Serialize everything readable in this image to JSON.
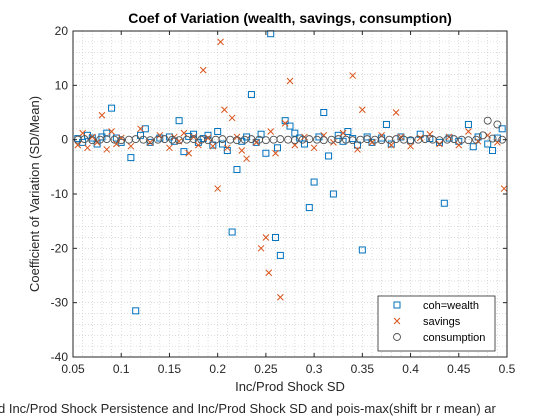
{
  "chart_data": {
    "type": "scatter",
    "title": "Coef of Variation (wealth, savings, consumption)",
    "xlabel": "Inc/Prod Shock SD",
    "ylabel": "Coefficient of Variation (SD/Mean)",
    "caption": "d Inc/Prod Shock Persistence and Inc/Prod Shock SD and pois-max(shift br r mean) ar",
    "xlim": [
      0.05,
      0.5
    ],
    "ylim": [
      -40,
      20
    ],
    "xticks": [
      "0.05",
      "0.1",
      "0.15",
      "0.2",
      "0.25",
      "0.3",
      "0.35",
      "0.4",
      "0.45",
      "0.5"
    ],
    "yticks": [
      "20",
      "10",
      "0",
      "-10",
      "-20",
      "-30",
      "-40"
    ],
    "grid": "dotted-minor",
    "legend_position": "bottom-right",
    "series": [
      {
        "name": "coh=wealth",
        "marker": "square",
        "color": "#0072BD",
        "points": [
          [
            0.055,
            0.2
          ],
          [
            0.06,
            -0.5
          ],
          [
            0.065,
            0.8
          ],
          [
            0.07,
            0.3
          ],
          [
            0.075,
            -0.8
          ],
          [
            0.08,
            0.5
          ],
          [
            0.085,
            1.2
          ],
          [
            0.09,
            5.8
          ],
          [
            0.095,
            0.3
          ],
          [
            0.1,
            -0.5
          ],
          [
            0.11,
            -3.3
          ],
          [
            0.115,
            -31.5
          ],
          [
            0.12,
            0.8
          ],
          [
            0.125,
            2.0
          ],
          [
            0.13,
            -0.5
          ],
          [
            0.14,
            0.3
          ],
          [
            0.15,
            0.5
          ],
          [
            0.155,
            -0.3
          ],
          [
            0.16,
            3.5
          ],
          [
            0.165,
            -2.2
          ],
          [
            0.17,
            0.6
          ],
          [
            0.175,
            1.0
          ],
          [
            0.18,
            -0.5
          ],
          [
            0.185,
            0.2
          ],
          [
            0.19,
            0.8
          ],
          [
            0.195,
            -1.0
          ],
          [
            0.2,
            1.5
          ],
          [
            0.205,
            -0.8
          ],
          [
            0.21,
            -2.0
          ],
          [
            0.215,
            -17.0
          ],
          [
            0.22,
            -5.5
          ],
          [
            0.225,
            -0.3
          ],
          [
            0.23,
            0.5
          ],
          [
            0.235,
            8.3
          ],
          [
            0.24,
            -0.5
          ],
          [
            0.245,
            1.0
          ],
          [
            0.25,
            -2.5
          ],
          [
            0.255,
            19.5
          ],
          [
            0.26,
            -18.0
          ],
          [
            0.262,
            -1.5
          ],
          [
            0.265,
            -21.3
          ],
          [
            0.27,
            3.5
          ],
          [
            0.275,
            2.5
          ],
          [
            0.28,
            1.2
          ],
          [
            0.285,
            0.3
          ],
          [
            0.29,
            -0.8
          ],
          [
            0.295,
            -12.5
          ],
          [
            0.3,
            -7.8
          ],
          [
            0.305,
            0.5
          ],
          [
            0.31,
            5.0
          ],
          [
            0.315,
            -3.0
          ],
          [
            0.32,
            -10.0
          ],
          [
            0.325,
            0.8
          ],
          [
            0.33,
            -0.3
          ],
          [
            0.335,
            1.5
          ],
          [
            0.34,
            0.2
          ],
          [
            0.345,
            -1.0
          ],
          [
            0.35,
            -20.3
          ],
          [
            0.355,
            0.5
          ],
          [
            0.36,
            -0.5
          ],
          [
            0.37,
            0.3
          ],
          [
            0.375,
            2.8
          ],
          [
            0.38,
            -0.8
          ],
          [
            0.39,
            0.5
          ],
          [
            0.4,
            -0.2
          ],
          [
            0.41,
            1.0
          ],
          [
            0.42,
            0.2
          ],
          [
            0.43,
            -0.5
          ],
          [
            0.435,
            -11.7
          ],
          [
            0.44,
            0.3
          ],
          [
            0.45,
            -0.3
          ],
          [
            0.46,
            2.8
          ],
          [
            0.465,
            -1.3
          ],
          [
            0.47,
            0.5
          ],
          [
            0.48,
            -0.8
          ],
          [
            0.485,
            -2.0
          ],
          [
            0.49,
            0.3
          ],
          [
            0.495,
            2.0
          ]
        ]
      },
      {
        "name": "savings",
        "marker": "x",
        "color": "#D95319",
        "points": [
          [
            0.055,
            -1.0
          ],
          [
            0.06,
            1.2
          ],
          [
            0.065,
            -1.5
          ],
          [
            0.07,
            0.5
          ],
          [
            0.075,
            -0.5
          ],
          [
            0.08,
            4.5
          ],
          [
            0.085,
            -1.8
          ],
          [
            0.09,
            1.5
          ],
          [
            0.095,
            -0.8
          ],
          [
            0.1,
            0.3
          ],
          [
            0.11,
            -1.2
          ],
          [
            0.12,
            2.0
          ],
          [
            0.13,
            -0.5
          ],
          [
            0.14,
            0.8
          ],
          [
            0.15,
            -1.5
          ],
          [
            0.155,
            0.5
          ],
          [
            0.16,
            -0.3
          ],
          [
            0.165,
            1.2
          ],
          [
            0.17,
            -2.5
          ],
          [
            0.175,
            0.5
          ],
          [
            0.18,
            -1.0
          ],
          [
            0.185,
            12.8
          ],
          [
            0.19,
            0.3
          ],
          [
            0.195,
            -1.2
          ],
          [
            0.2,
            -9.0
          ],
          [
            0.203,
            18.0
          ],
          [
            0.207,
            5.5
          ],
          [
            0.21,
            -1.5
          ],
          [
            0.215,
            4.0
          ],
          [
            0.22,
            0.5
          ],
          [
            0.225,
            -2.0
          ],
          [
            0.23,
            -3.5
          ],
          [
            0.24,
            -0.5
          ],
          [
            0.245,
            -20.0
          ],
          [
            0.25,
            -18.0
          ],
          [
            0.253,
            -24.5
          ],
          [
            0.255,
            1.5
          ],
          [
            0.26,
            -2.5
          ],
          [
            0.265,
            -29.0
          ],
          [
            0.27,
            3.0
          ],
          [
            0.275,
            10.8
          ],
          [
            0.28,
            -1.0
          ],
          [
            0.29,
            0.5
          ],
          [
            0.3,
            -1.5
          ],
          [
            0.31,
            0.8
          ],
          [
            0.32,
            -0.5
          ],
          [
            0.33,
            1.2
          ],
          [
            0.34,
            11.8
          ],
          [
            0.345,
            -1.8
          ],
          [
            0.35,
            5.5
          ],
          [
            0.36,
            -0.5
          ],
          [
            0.37,
            0.8
          ],
          [
            0.38,
            -1.0
          ],
          [
            0.385,
            5.0
          ],
          [
            0.39,
            0.5
          ],
          [
            0.4,
            -1.2
          ],
          [
            0.41,
            0.3
          ],
          [
            0.42,
            1.0
          ],
          [
            0.43,
            -0.8
          ],
          [
            0.44,
            0.5
          ],
          [
            0.45,
            -1.0
          ],
          [
            0.46,
            1.5
          ],
          [
            0.47,
            -0.3
          ],
          [
            0.48,
            0.8
          ],
          [
            0.49,
            -0.5
          ],
          [
            0.497,
            -9.0
          ]
        ]
      },
      {
        "name": "consumption",
        "marker": "circle",
        "color": "#505050",
        "points": [
          [
            0.055,
            0.0
          ],
          [
            0.062,
            0.1
          ],
          [
            0.07,
            -0.1
          ],
          [
            0.078,
            0.0
          ],
          [
            0.085,
            0.1
          ],
          [
            0.093,
            0.0
          ],
          [
            0.1,
            -0.1
          ],
          [
            0.108,
            0.0
          ],
          [
            0.115,
            0.1
          ],
          [
            0.123,
            0.0
          ],
          [
            0.13,
            -0.1
          ],
          [
            0.138,
            0.0
          ],
          [
            0.145,
            0.1
          ],
          [
            0.153,
            0.0
          ],
          [
            0.16,
            -0.1
          ],
          [
            0.168,
            0.0
          ],
          [
            0.175,
            0.1
          ],
          [
            0.183,
            0.0
          ],
          [
            0.19,
            -0.1
          ],
          [
            0.198,
            0.0
          ],
          [
            0.205,
            0.1
          ],
          [
            0.213,
            0.0
          ],
          [
            0.22,
            -0.1
          ],
          [
            0.228,
            0.0
          ],
          [
            0.235,
            0.1
          ],
          [
            0.243,
            0.0
          ],
          [
            0.25,
            -0.1
          ],
          [
            0.258,
            0.0
          ],
          [
            0.265,
            0.1
          ],
          [
            0.273,
            0.0
          ],
          [
            0.28,
            -0.1
          ],
          [
            0.288,
            0.0
          ],
          [
            0.295,
            0.1
          ],
          [
            0.303,
            0.0
          ],
          [
            0.31,
            -0.1
          ],
          [
            0.318,
            0.0
          ],
          [
            0.325,
            0.1
          ],
          [
            0.333,
            0.0
          ],
          [
            0.34,
            -0.1
          ],
          [
            0.348,
            0.0
          ],
          [
            0.355,
            0.1
          ],
          [
            0.363,
            0.0
          ],
          [
            0.37,
            -0.1
          ],
          [
            0.378,
            0.0
          ],
          [
            0.385,
            0.1
          ],
          [
            0.393,
            0.0
          ],
          [
            0.4,
            -0.1
          ],
          [
            0.408,
            0.0
          ],
          [
            0.415,
            0.1
          ],
          [
            0.423,
            0.0
          ],
          [
            0.43,
            -0.1
          ],
          [
            0.438,
            0.0
          ],
          [
            0.445,
            0.1
          ],
          [
            0.453,
            0.0
          ],
          [
            0.46,
            -0.1
          ],
          [
            0.468,
            0.0
          ],
          [
            0.475,
            0.8
          ],
          [
            0.48,
            3.5
          ],
          [
            0.485,
            0.2
          ],
          [
            0.49,
            2.8
          ],
          [
            0.495,
            0.0
          ]
        ]
      }
    ]
  }
}
